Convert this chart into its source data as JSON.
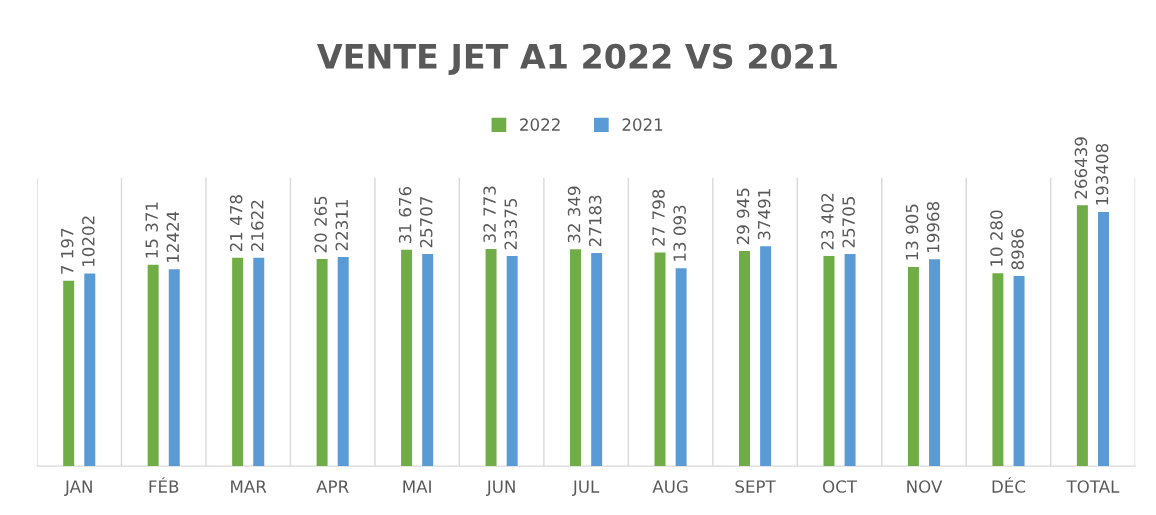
{
  "chart_data": {
    "type": "bar",
    "title": "VENTE JET A1 2022 VS 2021",
    "categories": [
      "JAN",
      "FÉB",
      "MAR",
      "APR",
      "MAI",
      "JUN",
      "JUL",
      "AUG",
      "SEPT",
      "OCT",
      "NOV",
      "DÉC",
      "TOTAL"
    ],
    "series": [
      {
        "name": "2022",
        "color": "#70ad47",
        "values": [
          7197,
          15371,
          21478,
          20265,
          31676,
          32773,
          32349,
          27798,
          29945,
          23402,
          13905,
          10280,
          266439
        ],
        "value_labels": [
          "7 197",
          "15 371",
          "21 478",
          "20 265",
          "31 676",
          "32 773",
          "32 349",
          "27 798",
          "29 945",
          "23 402",
          "13 905",
          "10 280",
          "266439"
        ]
      },
      {
        "name": "2021",
        "color": "#5b9bd5",
        "values": [
          10202,
          12424,
          21622,
          22311,
          25707,
          23375,
          27183,
          13093,
          37491,
          25705,
          19968,
          8986,
          193408
        ],
        "value_labels": [
          "10202",
          "12424",
          "21622",
          "22311",
          "25707",
          "23375",
          "27183",
          "13 093",
          "37491",
          "25705",
          "19968",
          "8986",
          "193408"
        ]
      }
    ],
    "log": true,
    "ylim": [
      1,
      1000000
    ],
    "tick_labels": "x",
    "grid": "x",
    "legend": "top"
  }
}
